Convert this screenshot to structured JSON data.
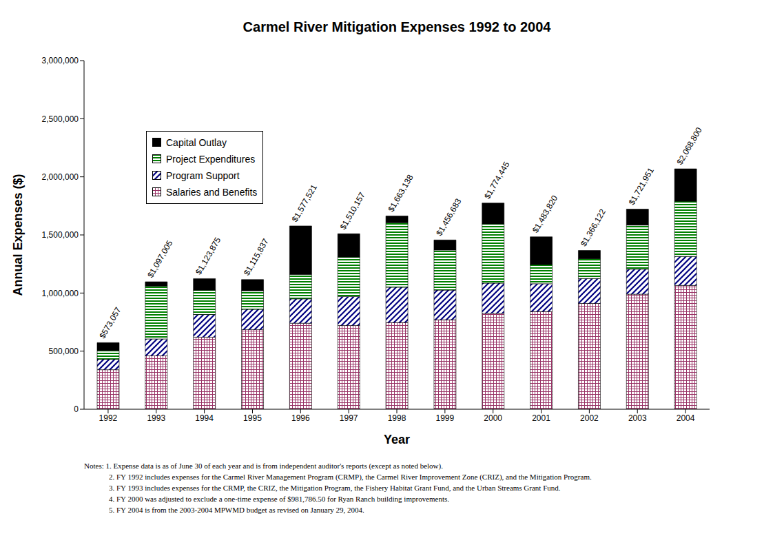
{
  "chart_data": {
    "type": "bar",
    "stacked": true,
    "title": "Carmel River Mitigation Expenses 1992 to 2004",
    "x_label": "Year",
    "y_label": "Annual Expenses ($)",
    "categories": [
      "1992",
      "1993",
      "1994",
      "1995",
      "1996",
      "1997",
      "1998",
      "1999",
      "2000",
      "2001",
      "2002",
      "2003",
      "2004"
    ],
    "series": [
      {
        "name": "Salaries and Benefits",
        "color": "#993366",
        "values": [
          340000,
          460000,
          620000,
          685000,
          740000,
          720000,
          745000,
          770000,
          825000,
          840000,
          910000,
          990000,
          1065000
        ]
      },
      {
        "name": "Program Support",
        "color": "#000080",
        "values": [
          90000,
          145000,
          195000,
          175000,
          210000,
          250000,
          305000,
          255000,
          260000,
          240000,
          215000,
          215000,
          250000
        ]
      },
      {
        "name": "Project Expenditures",
        "color": "#008000",
        "values": [
          75000,
          455000,
          210000,
          160000,
          210000,
          340000,
          555000,
          345000,
          510000,
          165000,
          170000,
          380000,
          475000
        ]
      },
      {
        "name": "Capital Outlay",
        "color": "#000000",
        "values": [
          68057,
          37005,
          98875,
          95837,
          417521,
          200157,
          58138,
          86683,
          179445,
          238820,
          71122,
          136951,
          278800
        ]
      }
    ],
    "totals": {
      "values": [
        573057,
        1097005,
        1123875,
        1115837,
        1577521,
        1510157,
        1663138,
        1456683,
        1774445,
        1483820,
        1366122,
        1721951,
        2068800
      ],
      "value_labels": [
        "$573,057",
        "$1,097,005",
        "$1,123,875",
        "$1,115,837",
        "$1,577,521",
        "$1,510,157",
        "$1,663,138",
        "$1,456,683",
        "$1,774,445",
        "$1,483,820",
        "$1,366,122",
        "$1,721,951",
        "$2,068,800"
      ]
    },
    "ylim": [
      0,
      3000000
    ],
    "yticks": [
      0,
      {
        "value": 500000,
        "label": "500,000"
      },
      {
        "value": 1000000,
        "label": "1,000,000"
      },
      {
        "value": 1500000,
        "label": "1,500,000"
      },
      {
        "value": 2000000,
        "label": "2,000,000"
      },
      {
        "value": 2500000,
        "label": "2,500,000"
      },
      {
        "value": 3000000,
        "label": "3,000,000"
      }
    ],
    "grid": false,
    "legend": "upper left",
    "notes": [
      "Notes: 1. Expense data is as of June 30 of each year and is from independent auditor's reports (except as noted below).",
      "2. FY 1992 includes expenses for  the Carmel River Management Program (CRMP), the Carmel River Improvement Zone (CRIZ), and the Mitigation Program.",
      "3. FY 1993 includes expenses for  the CRMP, the CRIZ, the Mitigation Program, the Fishery Habitat Grant Fund, and the Urban Streams Grant Fund.",
      "4. FY 2000 was adjusted to exclude a one-time expense of $981,786.50 for Ryan Ranch building improvements.",
      "5. FY 2004 is from the 2003-2004 MPWMD budget as revised on January 29, 2004."
    ]
  }
}
